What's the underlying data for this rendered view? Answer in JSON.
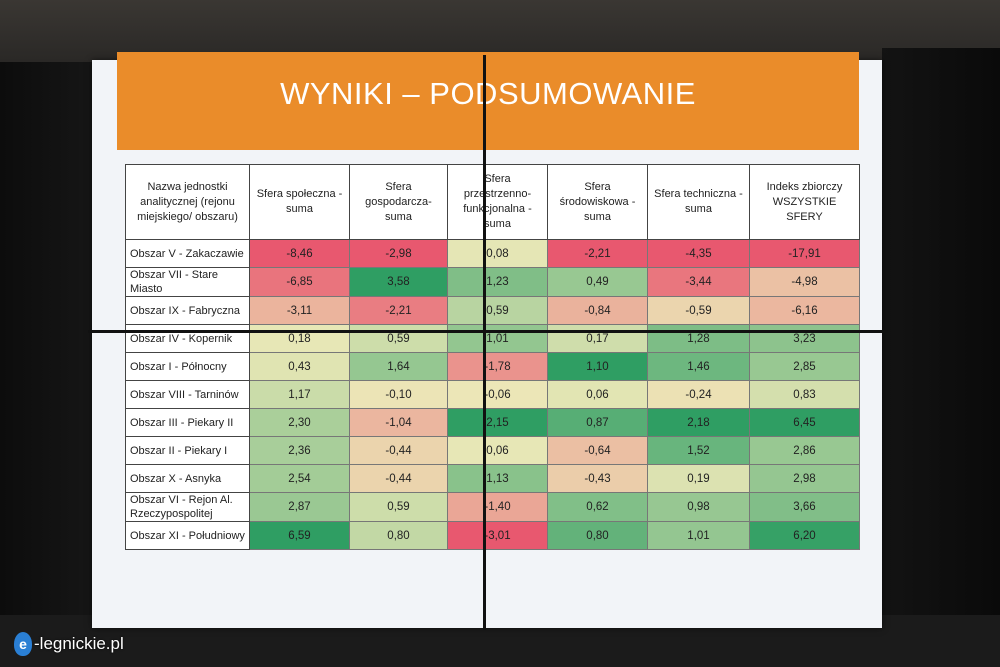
{
  "title": "WYNIKI – PODSUMOWANIE",
  "table": {
    "headers": [
      "Nazwa jednostki analitycznej (rejonu miejskiego/ obszaru)",
      "Sfera społeczna - suma",
      "Sfera gospodarcza- suma",
      "Sfera przestrzenno- funkcjonalna - suma",
      "Sfera środowiskowa - suma",
      "Sfera techniczna - suma",
      "Indeks zbiorczy WSZYSTKIE SFERY"
    ],
    "rows": [
      {
        "name": "Obszar V - Zakaczawie",
        "values": [
          "-8,46",
          "-2,98",
          "0,08",
          "-2,21",
          "-4,35",
          "-17,91"
        ]
      },
      {
        "name": "Obszar VII - Stare Miasto",
        "values": [
          "-6,85",
          "3,58",
          "1,23",
          "0,49",
          "-3,44",
          "-4,98"
        ]
      },
      {
        "name": "Obszar IX - Fabryczna",
        "values": [
          "-3,11",
          "-2,21",
          "0,59",
          "-0,84",
          "-0,59",
          "-6,16"
        ]
      },
      {
        "name": "Obszar IV - Kopernik",
        "values": [
          "0,18",
          "0,59",
          "1,01",
          "0,17",
          "1,28",
          "3,23"
        ]
      },
      {
        "name": "Obszar I - Północny",
        "values": [
          "0,43",
          "1,64",
          "-1,78",
          "1,10",
          "1,46",
          "2,85"
        ]
      },
      {
        "name": "Obszar VIII - Tarninów",
        "values": [
          "1,17",
          "-0,10",
          "-0,06",
          "0,06",
          "-0,24",
          "0,83"
        ]
      },
      {
        "name": "Obszar III - Piekary II",
        "values": [
          "2,30",
          "-1,04",
          "2,15",
          "0,87",
          "2,18",
          "6,45"
        ]
      },
      {
        "name": "Obszar II - Piekary I",
        "values": [
          "2,36",
          "-0,44",
          "0,06",
          "-0,64",
          "1,52",
          "2,86"
        ]
      },
      {
        "name": "Obszar X - Asnyka",
        "values": [
          "2,54",
          "-0,44",
          "1,13",
          "-0,43",
          "0,19",
          "2,98"
        ]
      },
      {
        "name": "Obszar VI - Rejon Al. Rzeczypospolitej",
        "values": [
          "2,87",
          "0,59",
          "-1,40",
          "0,62",
          "0,98",
          "3,66"
        ]
      },
      {
        "name": "Obszar XI - Południowy",
        "values": [
          "6,59",
          "0,80",
          "-3,01",
          "0,80",
          "1,01",
          "6,20"
        ]
      }
    ]
  },
  "watermark": {
    "icon_letter": "e",
    "text": "-legnickie.pl"
  },
  "colors": {
    "title_bar": "#ea8c2a",
    "heat_low": "#e8586f",
    "heat_mid": "#ece9b8",
    "heat_high": "#2f9e63"
  }
}
